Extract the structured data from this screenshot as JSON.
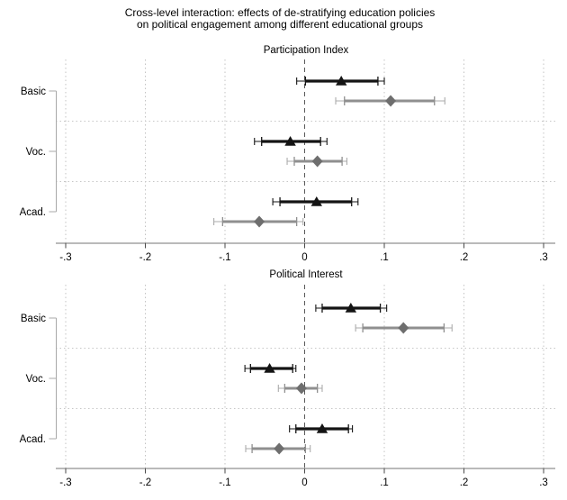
{
  "title": {
    "line1": "Cross-level interaction: effects of de-stratifying education policies",
    "line2": "on political engagement among different educational groups"
  },
  "colors": {
    "text": "#000000",
    "grid": "#c3c3c3",
    "separator": "#c7c7c7",
    "zero_line": "#5a5a5a",
    "axis_line": "#909090",
    "tick": "#4a4a4a",
    "bracket": "#a8a8a8",
    "series1": "#141414",
    "series2_marker": "#6e6e6e",
    "series2_line": "#8f8f8f",
    "series2_thin": "#ababab"
  },
  "axis": {
    "min": -0.3,
    "max": 0.3,
    "ticks": [
      -0.3,
      -0.2,
      -0.1,
      0,
      0.1,
      0.2,
      0.3
    ],
    "tick_labels": [
      "-.3",
      "-.2",
      "-.1",
      "0",
      ".1",
      ".2",
      ".3"
    ]
  },
  "chart_data": [
    {
      "type": "scatter",
      "subtype": "coefficient-plot",
      "title": "Participation Index",
      "xlim": [
        -0.3,
        0.3
      ],
      "grid": "dotted-vertical",
      "zero_line": "dashed",
      "categories": [
        "Basic",
        "Voc.",
        "Acad."
      ],
      "series": [
        {
          "name": "series-triangle-black",
          "marker": "triangle",
          "points": [
            {
              "category": "Basic",
              "estimate": 0.046,
              "ci_inner": [
                0.001,
                0.092
              ],
              "ci_outer": [
                -0.01,
                0.1
              ]
            },
            {
              "category": "Voc.",
              "estimate": -0.018,
              "ci_inner": [
                -0.054,
                0.02
              ],
              "ci_outer": [
                -0.063,
                0.028
              ]
            },
            {
              "category": "Acad.",
              "estimate": 0.015,
              "ci_inner": [
                -0.031,
                0.059
              ],
              "ci_outer": [
                -0.04,
                0.067
              ]
            }
          ]
        },
        {
          "name": "series-diamond-gray",
          "marker": "diamond",
          "points": [
            {
              "category": "Basic",
              "estimate": 0.108,
              "ci_inner": [
                0.05,
                0.163
              ],
              "ci_outer": [
                0.039,
                0.176
              ]
            },
            {
              "category": "Voc.",
              "estimate": 0.016,
              "ci_inner": [
                -0.013,
                0.047
              ],
              "ci_outer": [
                -0.022,
                0.053
              ]
            },
            {
              "category": "Acad.",
              "estimate": -0.057,
              "ci_inner": [
                -0.103,
                -0.01
              ],
              "ci_outer": [
                -0.114,
                -0.002
              ]
            }
          ]
        }
      ]
    },
    {
      "type": "scatter",
      "subtype": "coefficient-plot",
      "title": "Political Interest",
      "xlim": [
        -0.3,
        0.3
      ],
      "grid": "dotted-vertical",
      "zero_line": "dashed",
      "categories": [
        "Basic",
        "Voc.",
        "Acad."
      ],
      "series": [
        {
          "name": "series-triangle-black",
          "marker": "triangle",
          "points": [
            {
              "category": "Basic",
              "estimate": 0.058,
              "ci_inner": [
                0.022,
                0.095
              ],
              "ci_outer": [
                0.014,
                0.103
              ]
            },
            {
              "category": "Voc.",
              "estimate": -0.044,
              "ci_inner": [
                -0.068,
                -0.015
              ],
              "ci_outer": [
                -0.075,
                -0.011
              ]
            },
            {
              "category": "Acad.",
              "estimate": 0.022,
              "ci_inner": [
                -0.011,
                0.055
              ],
              "ci_outer": [
                -0.019,
                0.06
              ]
            }
          ]
        },
        {
          "name": "series-diamond-gray",
          "marker": "diamond",
          "points": [
            {
              "category": "Basic",
              "estimate": 0.124,
              "ci_inner": [
                0.073,
                0.175
              ],
              "ci_outer": [
                0.064,
                0.185
              ]
            },
            {
              "category": "Voc.",
              "estimate": -0.004,
              "ci_inner": [
                -0.025,
                0.016
              ],
              "ci_outer": [
                -0.033,
                0.022
              ]
            },
            {
              "category": "Acad.",
              "estimate": -0.032,
              "ci_inner": [
                -0.066,
                0.001
              ],
              "ci_outer": [
                -0.074,
                0.007
              ]
            }
          ]
        }
      ]
    }
  ]
}
